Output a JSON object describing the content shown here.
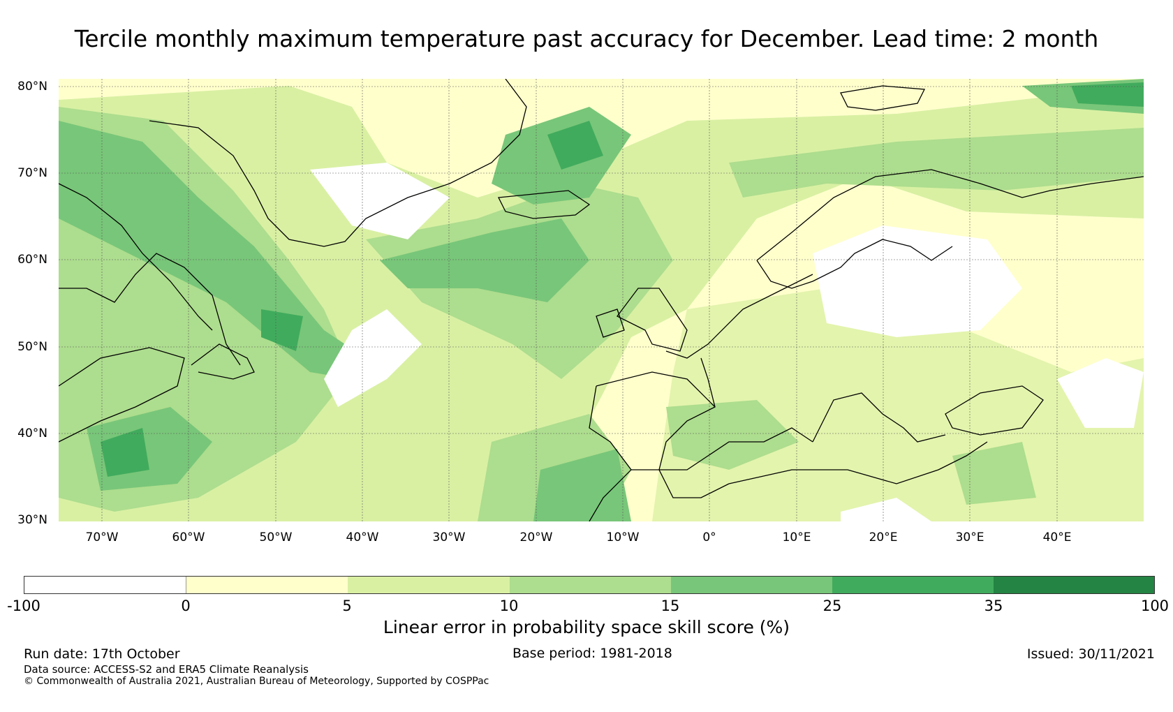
{
  "title": "Tercile monthly maximum temperature past accuracy for December. Lead time: 2 month",
  "map": {
    "latitude_labels": [
      "80°N",
      "70°N",
      "60°N",
      "50°N",
      "40°N",
      "30°N"
    ],
    "longitude_labels": [
      "70°W",
      "60°W",
      "50°W",
      "40°W",
      "30°W",
      "20°W",
      "10°W",
      "0°",
      "10°E",
      "20°E",
      "30°E",
      "40°E"
    ],
    "lon_range": [
      -75,
      50
    ],
    "lat_range": [
      30,
      81
    ],
    "background": "land and ocean gridded skill field with coastlines"
  },
  "colorbar": {
    "caption": "Linear error in probability space skill score (%)",
    "ticks": [
      "-100",
      "0",
      "5",
      "10",
      "15",
      "25",
      "35",
      "100"
    ],
    "colors": [
      "#ffffff",
      "#ffffcc",
      "#d9f0a3",
      "#addd8e",
      "#78c679",
      "#41ab5d",
      "#238443"
    ]
  },
  "footer": {
    "run_date": "Run date: 17th October",
    "base_period": "Base period: 1981-2018",
    "issued": "Issued: 30/11/2021",
    "data_source": "Data source: ACCESS-S2 and ERA5 Climate Reanalysis",
    "copyright": "© Commonwealth of Australia 2021, Australian Bureau of Meteorology, Supported by COSPPac"
  }
}
